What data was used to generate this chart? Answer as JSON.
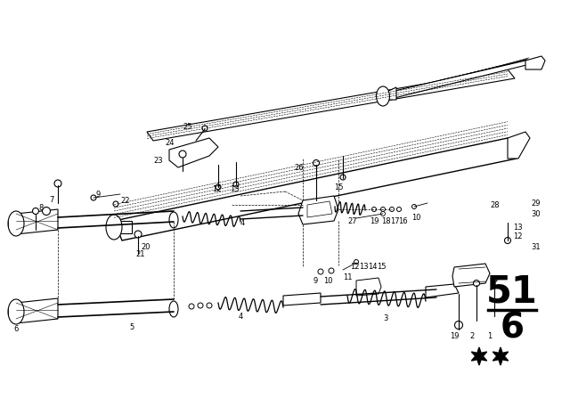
{
  "bg_color": "#ffffff",
  "line_color": "#000000",
  "fig_width": 6.4,
  "fig_height": 4.48,
  "dpi": 100,
  "section_number": "51",
  "section_sub": "6"
}
